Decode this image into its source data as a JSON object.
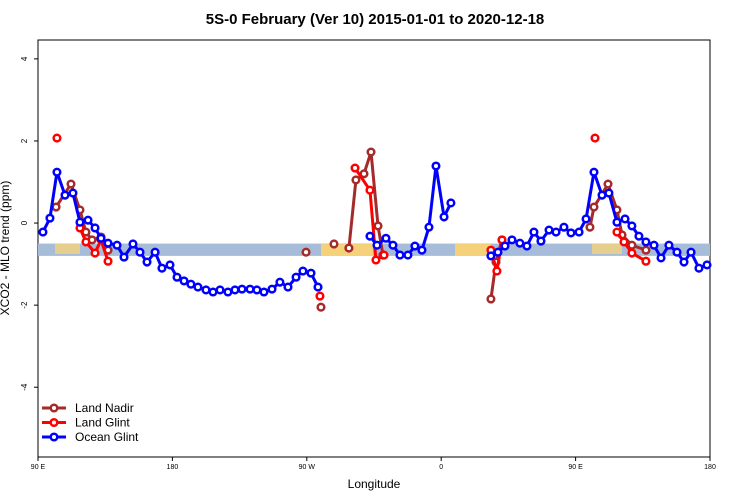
{
  "chart_data": {
    "type": "line",
    "title": "5S-0 February (Ver 10)   2015-01-01 to 2020-12-18",
    "x_label": "Longitude",
    "y_label": "XCO2 - MLO trend (ppm)",
    "xlim": [
      90,
      540
    ],
    "ylim": [
      -5.7,
      4.46
    ],
    "xticks": [
      {
        "value": 90,
        "label": "90 E"
      },
      180,
      {
        "value": 270,
        "label": "90 W"
      },
      {
        "value": 360,
        "label": "0"
      },
      {
        "value": 450,
        "label": "90 E"
      },
      180
    ],
    "yticks": [
      4,
      2,
      0,
      -2,
      -4
    ],
    "reference_band": [
      -0.8,
      -0.5
    ],
    "band_color": "#a7bcd9",
    "legend": "bottom-left",
    "series": [
      {
        "name": "Land Nadir",
        "color": "#a52a2a",
        "x": [
          102.1,
          112.1,
          118.1,
          122.1,
          126.2,
          132.2,
          136.9,
          null,
          269.5,
          null,
          279.5,
          null,
          288.2,
          null,
          298.2,
          302.9,
          308.3,
          313.0,
          317.7,
          321.0,
          null,
          393.3,
          396.7,
          400.7,
          null,
          459.6,
          462.3,
          471.7,
          477.7,
          481.1,
          487.7,
          497.1
        ],
        "values": [
          0.39,
          0.95,
          0.32,
          -0.22,
          -0.41,
          -0.34,
          -0.66,
          null,
          -0.71,
          null,
          -2.05,
          null,
          -0.51,
          null,
          -0.61,
          1.05,
          1.2,
          1.73,
          -0.07,
          -0.78,
          null,
          -1.85,
          -0.95,
          -0.41,
          null,
          -0.1,
          0.39,
          0.95,
          0.32,
          -0.29,
          -0.54,
          -0.66
        ]
      },
      {
        "name": "Land Glint",
        "color": "#ff0000",
        "x": [
          102.7,
          null,
          118.1,
          122.1,
          128.2,
          132.2,
          136.9,
          null,
          278.8,
          null,
          302.3,
          312.3,
          316.3,
          321.7,
          null,
          393.3,
          397.3,
          400.7,
          null,
          463.0,
          null,
          477.7,
          482.4,
          487.7,
          497.1
        ],
        "values": [
          2.07,
          null,
          -0.12,
          -0.46,
          -0.73,
          -0.41,
          -0.93,
          null,
          -1.78,
          null,
          1.34,
          0.8,
          -0.9,
          -0.78,
          null,
          -0.66,
          -1.17,
          -0.41,
          null,
          2.07,
          null,
          -0.22,
          -0.46,
          -0.73,
          -0.93
        ]
      },
      {
        "name": "Ocean Glint",
        "color": "#0000ff",
        "x": [
          93.3,
          98.0,
          102.7,
          108.1,
          113.4,
          118.1,
          123.5,
          128.2,
          132.2,
          136.9,
          142.9,
          147.6,
          153.6,
          158.3,
          163.0,
          168.4,
          173.0,
          178.4,
          183.1,
          187.8,
          192.4,
          197.1,
          202.5,
          207.2,
          211.9,
          217.2,
          221.9,
          226.6,
          232.0,
          236.6,
          241.3,
          246.7,
          252.0,
          257.4,
          262.8,
          267.4,
          272.8,
          277.5,
          null,
          312.3,
          317.0,
          323.0,
          327.7,
          332.4,
          337.7,
          342.4,
          347.1,
          351.8,
          356.5,
          361.9,
          366.5,
          null,
          393.3,
          398.0,
          402.7,
          407.4,
          412.7,
          417.4,
          422.1,
          426.8,
          432.2,
          436.9,
          442.2,
          446.9,
          452.3,
          457.0,
          462.3,
          467.7,
          472.3,
          477.7,
          483.1,
          487.7,
          492.4,
          497.1,
          502.5,
          507.2,
          512.5,
          517.9,
          522.6,
          527.3,
          532.6,
          538.0
        ],
        "values": [
          -0.22,
          0.12,
          1.24,
          0.68,
          0.73,
          0.02,
          0.07,
          -0.12,
          -0.37,
          -0.49,
          -0.54,
          -0.83,
          -0.51,
          -0.71,
          -0.95,
          -0.71,
          -1.1,
          -1.02,
          -1.32,
          -1.41,
          -1.49,
          -1.56,
          -1.63,
          -1.68,
          -1.63,
          -1.68,
          -1.63,
          -1.61,
          -1.61,
          -1.63,
          -1.68,
          -1.61,
          -1.44,
          -1.56,
          -1.32,
          -1.17,
          -1.22,
          -1.56,
          null,
          -0.32,
          -0.54,
          -0.37,
          -0.54,
          -0.78,
          -0.78,
          -0.56,
          -0.66,
          -0.1,
          1.39,
          0.15,
          0.49,
          null,
          -0.8,
          -0.71,
          -0.56,
          -0.41,
          -0.49,
          -0.56,
          -0.22,
          -0.44,
          -0.17,
          -0.22,
          -0.1,
          -0.24,
          -0.22,
          0.1,
          1.24,
          0.68,
          0.73,
          0.02,
          0.1,
          -0.07,
          -0.32,
          -0.46,
          -0.54,
          -0.85,
          -0.54,
          -0.71,
          -0.95,
          -0.71,
          -1.1,
          -1.02
        ]
      }
    ]
  }
}
